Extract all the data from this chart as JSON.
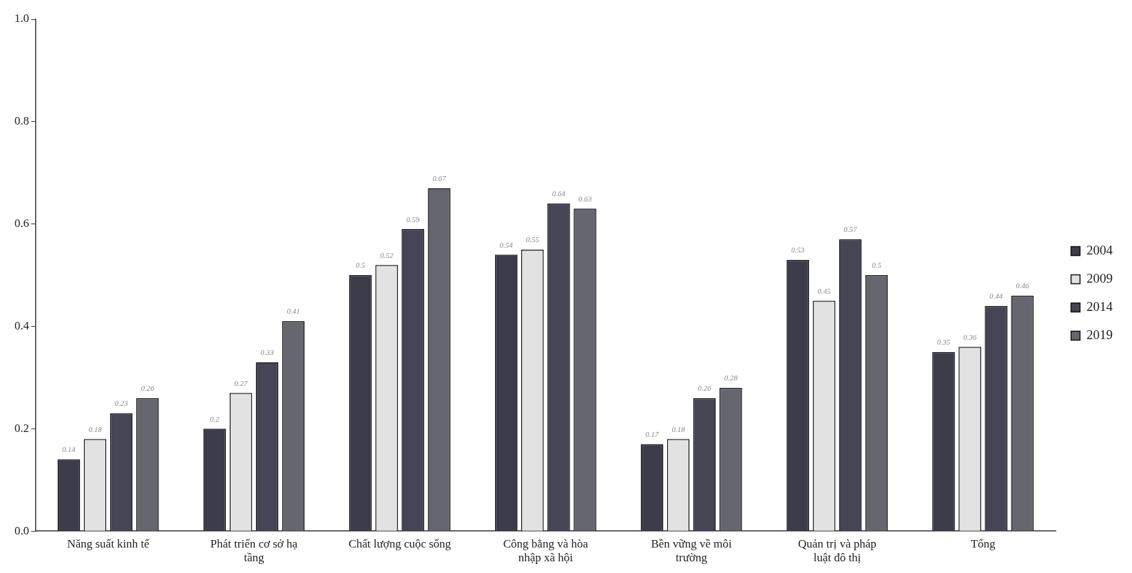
{
  "chart_data": {
    "type": "bar",
    "categories": [
      "Năng suất kinh tế",
      "Phát triển cơ sở hạ tầng",
      "Chất lượng cuộc sống",
      "Công bằng và hòa nhập xã hội",
      "Bền vững về môi trường",
      "Quản trị và pháp luật đô thị",
      "Tổng"
    ],
    "series": [
      {
        "name": "2004",
        "color": "#3c3c4a",
        "values": [
          0.14,
          0.2,
          0.5,
          0.54,
          0.17,
          0.53,
          0.35
        ]
      },
      {
        "name": "2009",
        "color": "#e2e2e2",
        "values": [
          0.18,
          0.27,
          0.52,
          0.55,
          0.18,
          0.45,
          0.36
        ]
      },
      {
        "name": "2014",
        "color": "#454555",
        "values": [
          0.23,
          0.33,
          0.59,
          0.64,
          0.26,
          0.57,
          0.44
        ]
      },
      {
        "name": "2019",
        "color": "#66666f",
        "values": [
          0.26,
          0.41,
          0.67,
          0.63,
          0.28,
          0.5,
          0.46
        ]
      }
    ],
    "ylim": [
      0,
      1
    ],
    "yticks": [
      {
        "value": 0,
        "label": "0.0"
      },
      {
        "value": 0.2,
        "label": "0.2"
      },
      {
        "value": 0.4,
        "label": "0.4"
      },
      {
        "value": 0.6,
        "label": "0.6"
      },
      {
        "value": 0.8,
        "label": "0.8"
      },
      {
        "value": 1,
        "label": "1.0"
      }
    ],
    "data_labels": true,
    "grid": false,
    "legend": "right"
  }
}
